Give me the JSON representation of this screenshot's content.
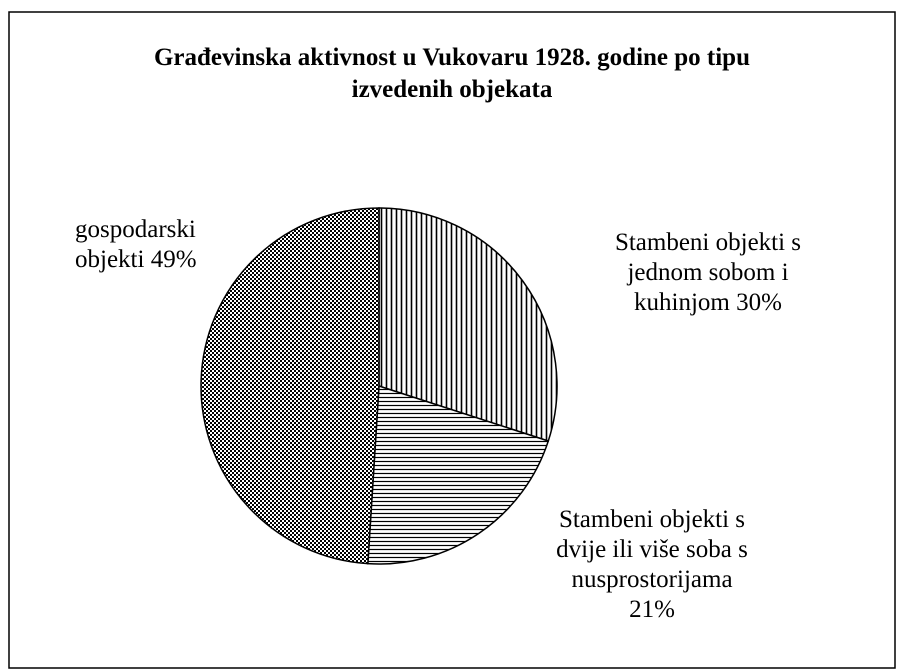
{
  "chart_data": {
    "type": "pie",
    "title": "Građevinska aktivnost u Vukovaru 1928. godine po tipu izvedenih objekata",
    "categories": [
      "Stambeni objekti s jednom sobom i kuhinjom",
      "Stambeni objekti s dvije ili više soba s nusprostorijama",
      "gospodarski objekti"
    ],
    "values": [
      30,
      21,
      49
    ],
    "value_labels": [
      "30%",
      "21%",
      "49%"
    ],
    "patterns": [
      "vertical",
      "horizontal",
      "dots"
    ]
  }
}
